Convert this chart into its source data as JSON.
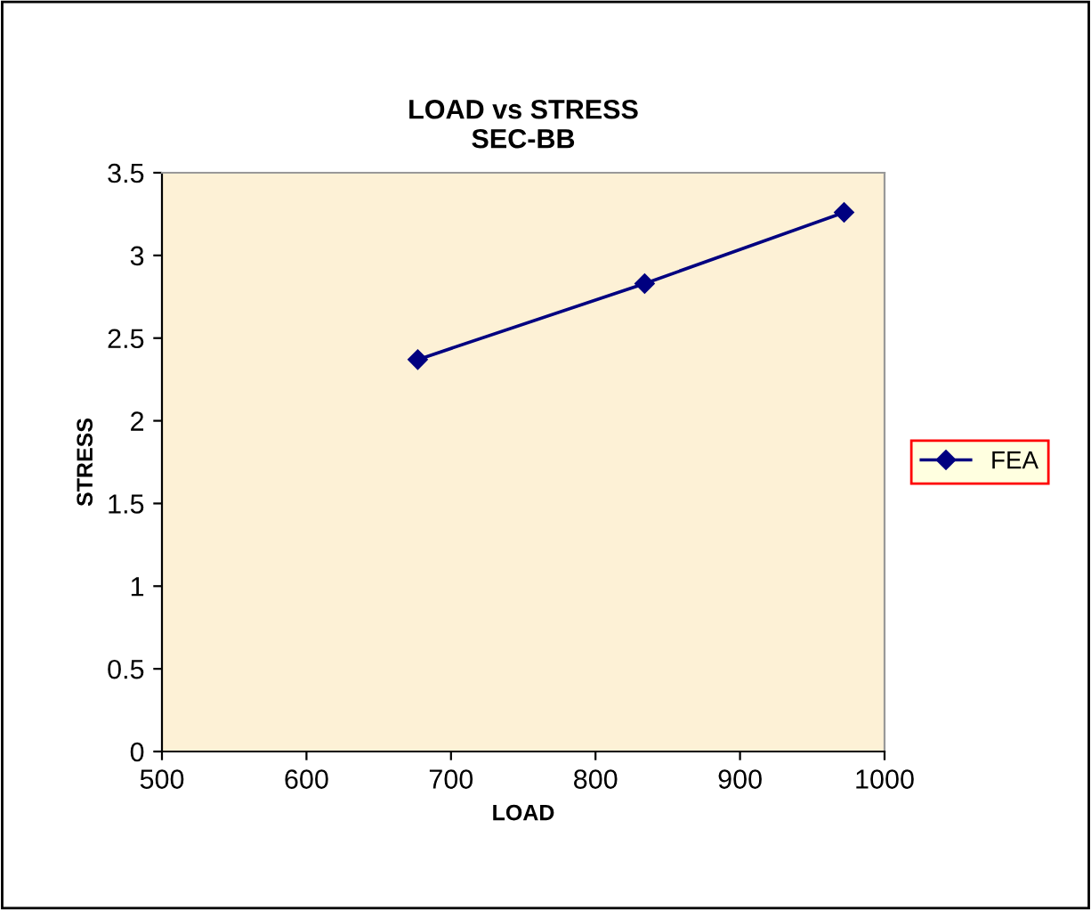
{
  "chart_data": {
    "type": "line",
    "title": "LOAD vs STRESS\nSEC-BB",
    "xlabel": "LOAD",
    "ylabel": "STRESS",
    "x": [
      677,
      834,
      972
    ],
    "series": [
      {
        "name": "FEA",
        "color": "#000080",
        "values": [
          2.37,
          2.83,
          3.26
        ]
      }
    ],
    "xlim": [
      500,
      1000
    ],
    "xticks": [
      500,
      600,
      700,
      800,
      900,
      1000
    ],
    "ylim": [
      0,
      3.5
    ],
    "yticks": [
      0,
      0.5,
      1,
      1.5,
      2,
      2.5,
      3,
      3.5
    ],
    "grid": false,
    "legend": "right",
    "marker": "diamond",
    "line_style": "solid"
  }
}
